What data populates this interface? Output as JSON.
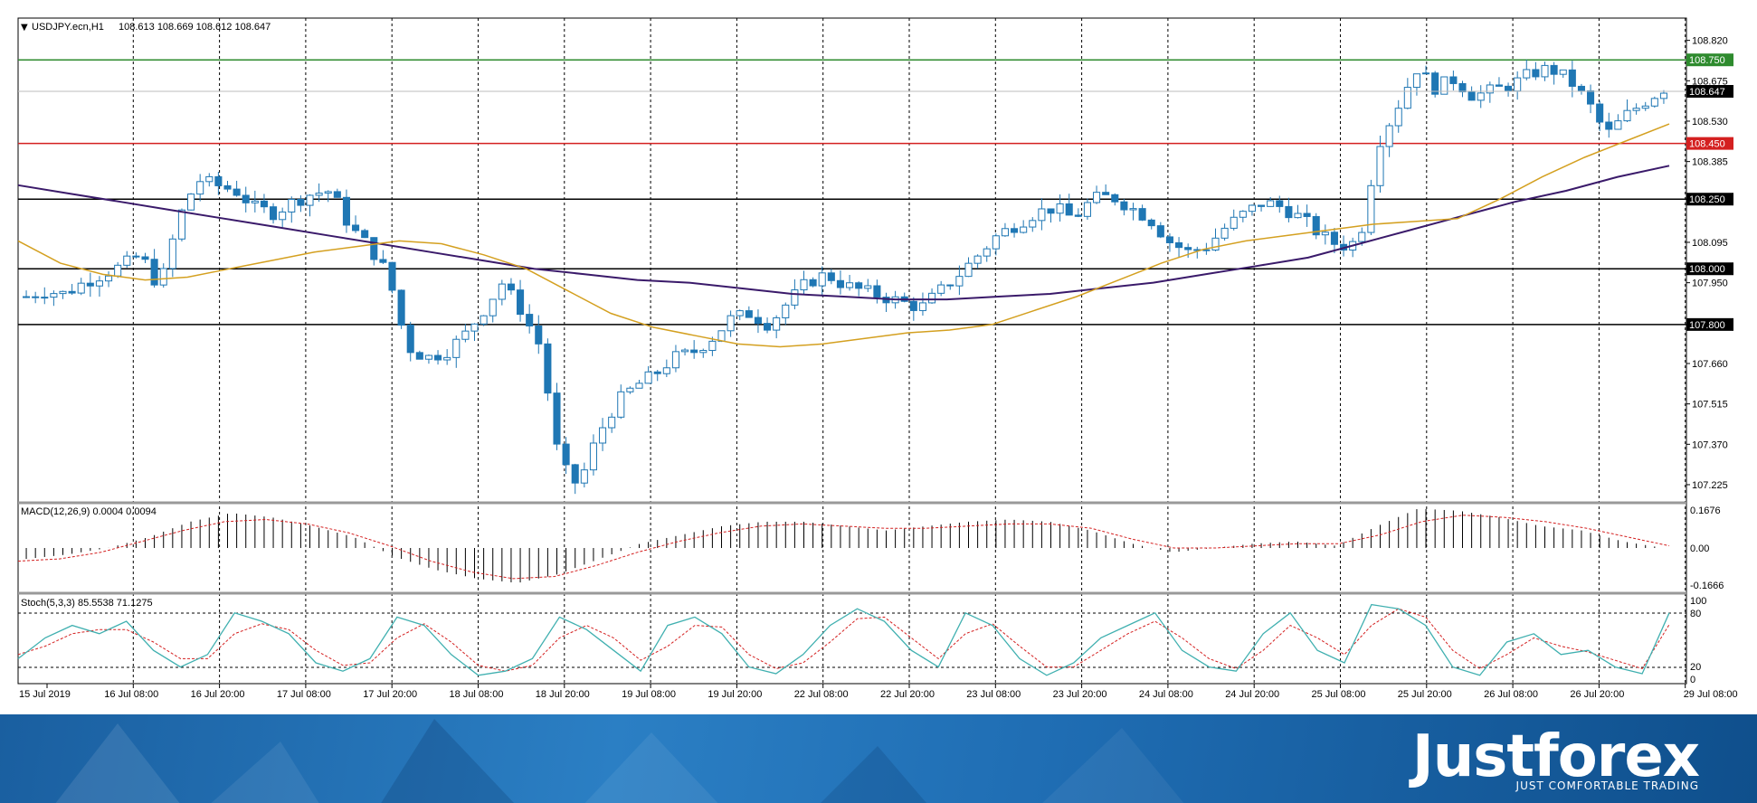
{
  "header": {
    "symbol": "USDJPY.ecn,H1",
    "ohlc": "108.613 108.669 108.612 108.647",
    "menu_glyph": "▼"
  },
  "price_axis": {
    "ticks": [
      "108.820",
      "108.675",
      "108.530",
      "108.385",
      "108.095",
      "107.950",
      "107.660",
      "107.515",
      "107.370",
      "107.225"
    ],
    "current_price": "108.647"
  },
  "levels": [
    {
      "value": 108.75,
      "label": "108.750",
      "color": "#2e8b2e",
      "label_bg": "#2e8b2e"
    },
    {
      "value": 108.45,
      "label": "108.450",
      "color": "#d42020",
      "label_bg": "#d42020"
    },
    {
      "value": 108.25,
      "label": "108.250",
      "color": "#000000",
      "label_bg": "#000000"
    },
    {
      "value": 108.0,
      "label": "108.000",
      "color": "#000000",
      "label_bg": "#000000"
    },
    {
      "value": 107.8,
      "label": "107.800",
      "color": "#000000",
      "label_bg": "#000000"
    }
  ],
  "time_axis": {
    "labels": [
      "15 Jul 2019",
      "16 Jul 08:00",
      "16 Jul 20:00",
      "17 Jul 08:00",
      "17 Jul 20:00",
      "18 Jul 08:00",
      "18 Jul 20:00",
      "19 Jul 08:00",
      "19 Jul 20:00",
      "22 Jul 08:00",
      "22 Jul 20:00",
      "23 Jul 08:00",
      "23 Jul 20:00",
      "24 Jul 08:00",
      "24 Jul 20:00",
      "25 Jul 08:00",
      "25 Jul 20:00",
      "26 Jul 08:00",
      "26 Jul 20:00",
      "29 Jul 08:00"
    ]
  },
  "macd": {
    "label": "MACD(12,26,9) 0.0004 0.0094",
    "ticks": [
      "0.1676",
      "0.00",
      "-0.1666"
    ]
  },
  "stoch": {
    "label": "Stoch(5,3,3) 85.5538 71.1275",
    "ticks": [
      "100",
      "80",
      "20",
      "0"
    ]
  },
  "colors": {
    "bull": "#ffffff",
    "bear": "#1f77b4",
    "wick": "#1f77b4",
    "ma_fast": "#d4a020",
    "ma_slow": "#3a1a6a",
    "macd_hist": "#000000",
    "macd_signal": "#d42020",
    "stoch_main": "#40b0b0",
    "stoch_signal": "#d42020"
  },
  "footer": {
    "brand": "Justforex",
    "slogan": "JUST COMFORTABLE TRADING"
  },
  "chart_data": {
    "type": "candlestick",
    "instrument": "USDJPY.ecn",
    "timeframe": "H1",
    "ylim": [
      107.16,
      108.9
    ],
    "last": {
      "open": 108.613,
      "high": 108.669,
      "low": 108.612,
      "close": 108.647
    },
    "close_path": [
      107.9,
      107.92,
      107.91,
      107.95,
      107.98,
      108.01,
      108.05,
      107.93,
      108.18,
      108.32,
      108.3,
      108.28,
      108.22,
      108.2,
      108.24,
      108.27,
      108.28,
      108.15,
      108.08,
      107.98,
      107.72,
      107.68,
      107.7,
      107.76,
      107.85,
      107.95,
      107.85,
      107.72,
      107.3,
      107.22,
      107.4,
      107.52,
      107.58,
      107.62,
      107.68,
      107.7,
      107.75,
      107.82,
      107.84,
      107.8,
      107.88,
      107.95,
      107.98,
      107.94,
      107.92,
      107.9,
      107.88,
      107.86,
      107.92,
      107.98,
      108.05,
      108.12,
      108.16,
      108.2,
      108.22,
      108.18,
      108.25,
      108.26,
      108.22,
      108.18,
      108.1,
      108.06,
      108.08,
      108.15,
      108.2,
      108.24,
      108.22,
      108.18,
      108.12,
      108.08,
      108.1,
      108.45,
      108.58,
      108.72,
      108.65,
      108.68,
      108.62,
      108.64,
      108.66,
      108.7,
      108.72,
      108.68,
      108.6,
      108.48,
      108.55,
      108.6,
      108.647
    ],
    "ma_fast": [
      108.1,
      108.02,
      107.98,
      107.96,
      107.97,
      108.0,
      108.03,
      108.06,
      108.08,
      108.1,
      108.09,
      108.05,
      108.0,
      107.92,
      107.84,
      107.79,
      107.76,
      107.73,
      107.72,
      107.73,
      107.75,
      107.77,
      107.78,
      107.8,
      107.85,
      107.9,
      107.96,
      108.02,
      108.07,
      108.1,
      108.12,
      108.14,
      108.16,
      108.17,
      108.18,
      108.25,
      108.33,
      108.4,
      108.46,
      108.52
    ],
    "ma_slow": [
      108.3,
      108.27,
      108.24,
      108.21,
      108.18,
      108.15,
      108.12,
      108.09,
      108.06,
      108.03,
      108.0,
      107.98,
      107.96,
      107.95,
      107.93,
      107.91,
      107.9,
      107.89,
      107.89,
      107.9,
      107.91,
      107.93,
      107.95,
      107.98,
      108.01,
      108.04,
      108.09,
      108.14,
      108.19,
      108.24,
      108.28,
      108.33,
      108.37
    ],
    "macd_histogram_path": [
      -0.05,
      -0.03,
      0.0,
      0.05,
      0.12,
      0.16,
      0.14,
      0.1,
      0.05,
      -0.04,
      -0.1,
      -0.14,
      -0.16,
      -0.12,
      -0.05,
      0.02,
      0.06,
      0.1,
      0.12,
      0.12,
      0.1,
      0.08,
      0.1,
      0.12,
      0.13,
      0.12,
      0.08,
      0.02,
      -0.02,
      0.0,
      0.02,
      0.03,
      0.01,
      0.1,
      0.18,
      0.17,
      0.14,
      0.1,
      0.08,
      0.03,
      0.0
    ],
    "macd_signal_path": [
      -0.06,
      -0.05,
      -0.02,
      0.03,
      0.08,
      0.12,
      0.13,
      0.11,
      0.07,
      0.01,
      -0.06,
      -0.11,
      -0.14,
      -0.13,
      -0.08,
      -0.02,
      0.03,
      0.07,
      0.1,
      0.11,
      0.1,
      0.09,
      0.09,
      0.1,
      0.11,
      0.11,
      0.09,
      0.04,
      0.0,
      0.0,
      0.01,
      0.02,
      0.02,
      0.06,
      0.12,
      0.15,
      0.14,
      0.12,
      0.09,
      0.05,
      0.01
    ],
    "stoch_main_path": [
      30,
      55,
      70,
      60,
      75,
      40,
      20,
      35,
      85,
      75,
      60,
      25,
      15,
      30,
      80,
      70,
      35,
      10,
      15,
      30,
      80,
      65,
      40,
      15,
      70,
      80,
      60,
      20,
      12,
      35,
      70,
      90,
      75,
      40,
      20,
      85,
      70,
      30,
      10,
      25,
      55,
      70,
      85,
      40,
      20,
      15,
      60,
      85,
      40,
      25,
      95,
      90,
      70,
      20,
      10,
      50,
      60,
      35,
      40,
      20,
      12,
      85
    ],
    "stoch_signal_path": [
      35,
      45,
      60,
      65,
      65,
      50,
      30,
      30,
      60,
      72,
      65,
      40,
      22,
      25,
      55,
      72,
      50,
      22,
      15,
      22,
      55,
      70,
      55,
      28,
      45,
      70,
      68,
      35,
      18,
      25,
      50,
      78,
      80,
      55,
      30,
      60,
      72,
      45,
      20,
      20,
      40,
      60,
      75,
      55,
      30,
      18,
      40,
      70,
      55,
      35,
      70,
      90,
      80,
      40,
      18,
      35,
      55,
      45,
      38,
      28,
      18,
      71
    ]
  }
}
